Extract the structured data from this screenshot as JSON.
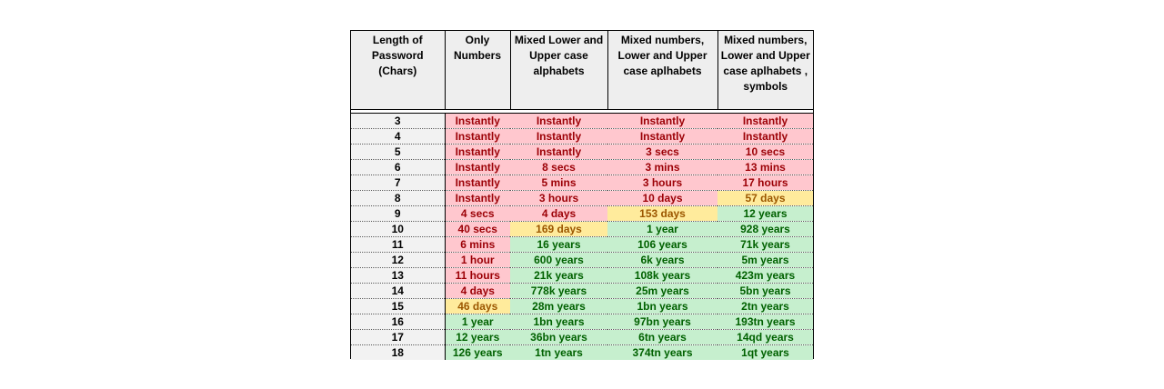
{
  "headers": [
    "Length of Password (Chars)",
    "Only Numbers",
    "Mixed Lower and Upper case alphabets",
    "Mixed numbers, Lower and Upper case aplhabets",
    "Mixed numbers, Lower and Upper case aplhabets , symbols"
  ],
  "status_colors": {
    "red": "#ffc7ce",
    "red_text": "#9c0006",
    "yellow": "#ffeb9c",
    "yellow_text": "#9c5700",
    "green": "#c6efce",
    "green_text": "#006100"
  },
  "rows": [
    {
      "length": "3",
      "cells": [
        {
          "text": "Instantly",
          "level": "red"
        },
        {
          "text": "Instantly",
          "level": "red"
        },
        {
          "text": "Instantly",
          "level": "red"
        },
        {
          "text": "Instantly",
          "level": "red"
        }
      ]
    },
    {
      "length": "4",
      "cells": [
        {
          "text": "Instantly",
          "level": "red"
        },
        {
          "text": "Instantly",
          "level": "red"
        },
        {
          "text": "Instantly",
          "level": "red"
        },
        {
          "text": "Instantly",
          "level": "red"
        }
      ]
    },
    {
      "length": "5",
      "cells": [
        {
          "text": "Instantly",
          "level": "red"
        },
        {
          "text": "Instantly",
          "level": "red"
        },
        {
          "text": "3 secs",
          "level": "red"
        },
        {
          "text": "10 secs",
          "level": "red"
        }
      ]
    },
    {
      "length": "6",
      "cells": [
        {
          "text": "Instantly",
          "level": "red"
        },
        {
          "text": "8 secs",
          "level": "red"
        },
        {
          "text": "3 mins",
          "level": "red"
        },
        {
          "text": "13 mins",
          "level": "red"
        }
      ]
    },
    {
      "length": "7",
      "cells": [
        {
          "text": "Instantly",
          "level": "red"
        },
        {
          "text": "5 mins",
          "level": "red"
        },
        {
          "text": "3 hours",
          "level": "red"
        },
        {
          "text": "17 hours",
          "level": "red"
        }
      ]
    },
    {
      "length": "8",
      "cells": [
        {
          "text": "Instantly",
          "level": "red"
        },
        {
          "text": "3 hours",
          "level": "red"
        },
        {
          "text": "10 days",
          "level": "red"
        },
        {
          "text": "57 days",
          "level": "yellow"
        }
      ]
    },
    {
      "length": "9",
      "cells": [
        {
          "text": "4 secs",
          "level": "red"
        },
        {
          "text": "4 days",
          "level": "red"
        },
        {
          "text": "153 days",
          "level": "yellow"
        },
        {
          "text": "12 years",
          "level": "green"
        }
      ]
    },
    {
      "length": "10",
      "cells": [
        {
          "text": "40 secs",
          "level": "red"
        },
        {
          "text": "169 days",
          "level": "yellow"
        },
        {
          "text": "1 year",
          "level": "green"
        },
        {
          "text": "928 years",
          "level": "green"
        }
      ]
    },
    {
      "length": "11",
      "cells": [
        {
          "text": "6 mins",
          "level": "red"
        },
        {
          "text": "16 years",
          "level": "green"
        },
        {
          "text": "106 years",
          "level": "green"
        },
        {
          "text": "71k years",
          "level": "green"
        }
      ]
    },
    {
      "length": "12",
      "cells": [
        {
          "text": "1 hour",
          "level": "red"
        },
        {
          "text": "600 years",
          "level": "green"
        },
        {
          "text": "6k years",
          "level": "green"
        },
        {
          "text": "5m years",
          "level": "green"
        }
      ]
    },
    {
      "length": "13",
      "cells": [
        {
          "text": "11 hours",
          "level": "red"
        },
        {
          "text": "21k years",
          "level": "green"
        },
        {
          "text": "108k years",
          "level": "green"
        },
        {
          "text": "423m years",
          "level": "green"
        }
      ]
    },
    {
      "length": "14",
      "cells": [
        {
          "text": "4 days",
          "level": "red"
        },
        {
          "text": "778k years",
          "level": "green"
        },
        {
          "text": "25m years",
          "level": "green"
        },
        {
          "text": "5bn years",
          "level": "green"
        }
      ]
    },
    {
      "length": "15",
      "cells": [
        {
          "text": "46 days",
          "level": "yellow"
        },
        {
          "text": "28m years",
          "level": "green"
        },
        {
          "text": "1bn years",
          "level": "green"
        },
        {
          "text": "2tn years",
          "level": "green"
        }
      ]
    },
    {
      "length": "16",
      "cells": [
        {
          "text": "1 year",
          "level": "green"
        },
        {
          "text": "1bn years",
          "level": "green"
        },
        {
          "text": "97bn years",
          "level": "green"
        },
        {
          "text": "193tn years",
          "level": "green"
        }
      ]
    },
    {
      "length": "17",
      "cells": [
        {
          "text": "12 years",
          "level": "green"
        },
        {
          "text": "36bn years",
          "level": "green"
        },
        {
          "text": "6tn years",
          "level": "green"
        },
        {
          "text": "14qd years",
          "level": "green"
        }
      ]
    },
    {
      "length": "18",
      "cells": [
        {
          "text": "126 years",
          "level": "green"
        },
        {
          "text": "1tn years",
          "level": "green"
        },
        {
          "text": "374tn years",
          "level": "green"
        },
        {
          "text": "1qt years",
          "level": "green"
        }
      ]
    }
  ]
}
